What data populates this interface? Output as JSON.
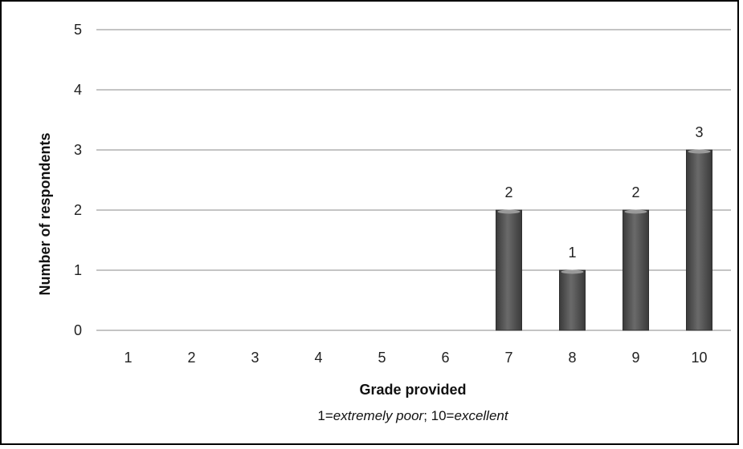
{
  "chart_data": {
    "type": "bar",
    "categories": [
      "1",
      "2",
      "3",
      "4",
      "5",
      "6",
      "7",
      "8",
      "9",
      "10"
    ],
    "values": [
      0,
      0,
      0,
      0,
      0,
      0,
      2,
      1,
      2,
      3
    ],
    "data_labels": [
      "",
      "",
      "",
      "",
      "",
      "",
      "2",
      "1",
      "2",
      "3"
    ],
    "title": "",
    "xlabel": "Grade provided",
    "xlabel_note_parts": [
      {
        "text": "1=",
        "italic": false
      },
      {
        "text": "extremely poor",
        "italic": true
      },
      {
        "text": "; 10=",
        "italic": false
      },
      {
        "text": "excellent",
        "italic": true
      }
    ],
    "ylabel": "Number of respondents",
    "ylim": [
      0,
      5
    ],
    "yticks": [
      0,
      1,
      2,
      3,
      4,
      5
    ],
    "grid": true,
    "legend": "none",
    "colors": {
      "bar": "#555555",
      "bar_highlight": "#9a9a9a",
      "grid": "#888888",
      "text": "#222222"
    }
  }
}
